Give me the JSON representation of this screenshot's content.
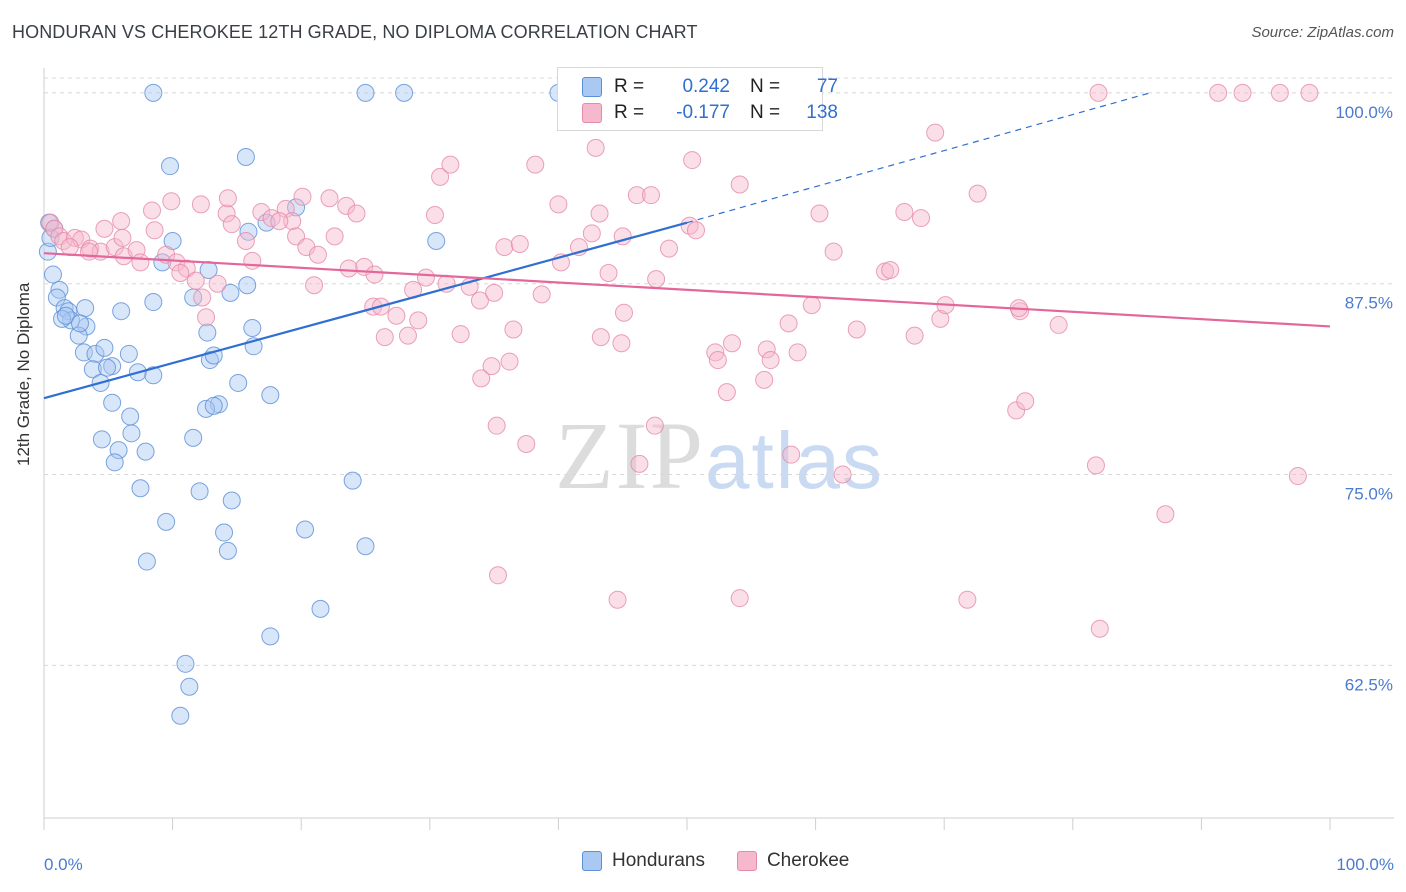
{
  "title": "HONDURAN VS CHEROKEE 12TH GRADE, NO DIPLOMA CORRELATION CHART",
  "source": "Source: ZipAtlas.com",
  "watermark": {
    "zip": "ZIP",
    "atlas": "atlas"
  },
  "legend_stats": {
    "r_label": "R =",
    "n_label": "N =",
    "rows": [
      {
        "r": "0.242",
        "n": "77"
      },
      {
        "r": "-0.177",
        "n": "138"
      }
    ]
  },
  "colors": {
    "hondurans_fill": "#a9c8f2",
    "hondurans_stroke": "#5b8fd6",
    "hondurans_line": "#2f6fd1",
    "cherokee_fill": "#f6b8cc",
    "cherokee_stroke": "#e58aa8",
    "cherokee_line": "#e3679a",
    "grid": "#d8d8d8",
    "tick_text": "#4a7bd0"
  },
  "chart_data": {
    "type": "scatter",
    "title": "HONDURAN VS CHEROKEE 12TH GRADE, NO DIPLOMA CORRELATION CHART",
    "xlabel": "",
    "ylabel": "12th Grade, No Diploma",
    "xlim": [
      0,
      100
    ],
    "ylim": [
      52.5,
      101.5
    ],
    "x_tick_labels": [
      "0.0%",
      "100.0%"
    ],
    "y_ticks": [
      62.5,
      75.0,
      87.5,
      100.0
    ],
    "y_tick_labels": [
      "62.5%",
      "75.0%",
      "87.5%",
      "100.0%"
    ],
    "grid": "horizontal dashed",
    "legend_placement": "top-center",
    "series": [
      {
        "name": "Hondurans",
        "r": 0.242,
        "n": 77,
        "trend": {
          "x": [
            0,
            50
          ],
          "y": [
            80.0,
            91.5
          ],
          "dashed_extension": {
            "x": [
              50,
              86
            ],
            "y": [
              91.5,
              100.0
            ]
          }
        },
        "points": [
          [
            8.5,
            100
          ],
          [
            25,
            100
          ],
          [
            28,
            100
          ],
          [
            40,
            100
          ],
          [
            9.8,
            95.2
          ],
          [
            15.7,
            95.8
          ],
          [
            0.4,
            91.5
          ],
          [
            0.3,
            89.6
          ],
          [
            0.7,
            88.1
          ],
          [
            1.2,
            87.1
          ],
          [
            1.0,
            86.6
          ],
          [
            1.6,
            85.9
          ],
          [
            1.9,
            85.7
          ],
          [
            2.1,
            85.1
          ],
          [
            3.2,
            85.9
          ],
          [
            3.3,
            84.7
          ],
          [
            1.4,
            85.2
          ],
          [
            2.7,
            84.1
          ],
          [
            6.0,
            85.7
          ],
          [
            3.1,
            83.0
          ],
          [
            4.0,
            82.9
          ],
          [
            4.7,
            83.3
          ],
          [
            5.3,
            82.1
          ],
          [
            6.6,
            82.9
          ],
          [
            7.3,
            81.7
          ],
          [
            3.8,
            81.9
          ],
          [
            4.4,
            81.0
          ],
          [
            8.5,
            81.5
          ],
          [
            12.7,
            84.3
          ],
          [
            12.9,
            82.5
          ],
          [
            13.2,
            82.8
          ],
          [
            14.5,
            86.9
          ],
          [
            16.2,
            84.6
          ],
          [
            16.3,
            83.4
          ],
          [
            11.6,
            86.6
          ],
          [
            8.5,
            86.3
          ],
          [
            9.2,
            88.9
          ],
          [
            10.0,
            90.3
          ],
          [
            12.8,
            88.4
          ],
          [
            15.8,
            87.4
          ],
          [
            17.3,
            91.5
          ],
          [
            15.9,
            90.9
          ],
          [
            19.6,
            92.5
          ],
          [
            30.5,
            90.3
          ],
          [
            17.6,
            80.2
          ],
          [
            15.1,
            81.0
          ],
          [
            13.6,
            79.6
          ],
          [
            12.6,
            79.3
          ],
          [
            13.2,
            79.5
          ],
          [
            5.3,
            79.7
          ],
          [
            6.7,
            78.8
          ],
          [
            6.8,
            77.7
          ],
          [
            4.5,
            77.3
          ],
          [
            5.8,
            76.6
          ],
          [
            7.9,
            76.5
          ],
          [
            11.6,
            77.4
          ],
          [
            5.5,
            75.8
          ],
          [
            7.5,
            74.1
          ],
          [
            12.1,
            73.9
          ],
          [
            14.6,
            73.3
          ],
          [
            24.0,
            74.6
          ],
          [
            9.5,
            71.9
          ],
          [
            14.0,
            71.2
          ],
          [
            20.3,
            71.4
          ],
          [
            25.0,
            70.3
          ],
          [
            14.3,
            70.0
          ],
          [
            8.0,
            69.3
          ],
          [
            21.5,
            66.2
          ],
          [
            17.6,
            64.4
          ],
          [
            11.0,
            62.6
          ],
          [
            11.3,
            61.1
          ],
          [
            10.6,
            59.2
          ],
          [
            0.8,
            91.1
          ],
          [
            0.5,
            90.5
          ],
          [
            1.7,
            85.4
          ],
          [
            2.8,
            84.9
          ],
          [
            4.9,
            82.0
          ]
        ]
      },
      {
        "name": "Cherokee",
        "r": -0.177,
        "n": 138,
        "trend": {
          "x": [
            0,
            100
          ],
          "y": [
            89.5,
            84.7
          ]
        },
        "points": [
          [
            0.5,
            91.5
          ],
          [
            0.8,
            91.1
          ],
          [
            1.2,
            90.6
          ],
          [
            1.5,
            90.3
          ],
          [
            2.4,
            90.5
          ],
          [
            2.9,
            90.4
          ],
          [
            3.6,
            89.8
          ],
          [
            4.4,
            89.6
          ],
          [
            5.5,
            89.9
          ],
          [
            6.2,
            89.3
          ],
          [
            7.2,
            89.7
          ],
          [
            8.6,
            91.0
          ],
          [
            9.5,
            89.4
          ],
          [
            10.3,
            88.9
          ],
          [
            11.1,
            88.5
          ],
          [
            11.8,
            87.7
          ],
          [
            12.3,
            86.6
          ],
          [
            13.5,
            87.5
          ],
          [
            12.6,
            85.3
          ],
          [
            8.4,
            92.3
          ],
          [
            6.0,
            91.6
          ],
          [
            6.1,
            90.5
          ],
          [
            9.9,
            92.9
          ],
          [
            12.2,
            92.7
          ],
          [
            14.2,
            92.1
          ],
          [
            14.6,
            91.4
          ],
          [
            15.7,
            90.3
          ],
          [
            16.9,
            92.2
          ],
          [
            17.7,
            91.8
          ],
          [
            18.8,
            92.4
          ],
          [
            19.3,
            91.6
          ],
          [
            19.6,
            90.6
          ],
          [
            20.4,
            89.9
          ],
          [
            21.3,
            89.4
          ],
          [
            22.2,
            93.1
          ],
          [
            23.5,
            92.6
          ],
          [
            24.3,
            92.1
          ],
          [
            21.0,
            87.4
          ],
          [
            23.7,
            88.5
          ],
          [
            24.9,
            88.6
          ],
          [
            25.6,
            86.0
          ],
          [
            26.2,
            86.0
          ],
          [
            27.4,
            85.4
          ],
          [
            26.5,
            84.0
          ],
          [
            28.3,
            84.1
          ],
          [
            28.7,
            87.1
          ],
          [
            29.7,
            87.9
          ],
          [
            31.3,
            87.5
          ],
          [
            30.4,
            92.0
          ],
          [
            30.8,
            94.5
          ],
          [
            31.6,
            95.3
          ],
          [
            33.1,
            87.3
          ],
          [
            33.9,
            86.4
          ],
          [
            35.0,
            86.9
          ],
          [
            32.4,
            84.2
          ],
          [
            34.0,
            81.3
          ],
          [
            35.2,
            78.2
          ],
          [
            34.8,
            82.1
          ],
          [
            35.8,
            89.9
          ],
          [
            36.5,
            84.5
          ],
          [
            37.0,
            90.1
          ],
          [
            38.7,
            86.8
          ],
          [
            36.2,
            82.4
          ],
          [
            37.5,
            77.0
          ],
          [
            38.2,
            95.3
          ],
          [
            40.0,
            92.7
          ],
          [
            40.2,
            88.9
          ],
          [
            41.6,
            89.9
          ],
          [
            42.6,
            90.8
          ],
          [
            43.2,
            92.1
          ],
          [
            42.9,
            96.4
          ],
          [
            43.3,
            84.0
          ],
          [
            45.0,
            90.6
          ],
          [
            45.1,
            85.6
          ],
          [
            43.9,
            88.2
          ],
          [
            46.1,
            93.3
          ],
          [
            47.6,
            87.8
          ],
          [
            47.2,
            93.3
          ],
          [
            44.9,
            83.6
          ],
          [
            46.3,
            75.7
          ],
          [
            47.5,
            78.2
          ],
          [
            48.6,
            89.8
          ],
          [
            50.2,
            91.3
          ],
          [
            50.7,
            91.0
          ],
          [
            47.6,
            100
          ],
          [
            50.4,
            95.6
          ],
          [
            52.2,
            83.0
          ],
          [
            52.4,
            82.5
          ],
          [
            53.1,
            80.4
          ],
          [
            53.5,
            83.6
          ],
          [
            54.1,
            94.0
          ],
          [
            55.4,
            100
          ],
          [
            56.0,
            81.2
          ],
          [
            56.2,
            83.2
          ],
          [
            56.5,
            82.5
          ],
          [
            57.9,
            84.9
          ],
          [
            58.6,
            83.0
          ],
          [
            58.1,
            76.3
          ],
          [
            59.7,
            86.1
          ],
          [
            60.3,
            92.1
          ],
          [
            61.4,
            89.6
          ],
          [
            62.1,
            75.0
          ],
          [
            63.2,
            84.5
          ],
          [
            65.4,
            88.3
          ],
          [
            65.8,
            88.4
          ],
          [
            66.9,
            92.2
          ],
          [
            67.7,
            84.1
          ],
          [
            68.2,
            91.8
          ],
          [
            69.7,
            85.2
          ],
          [
            69.3,
            97.4
          ],
          [
            70.1,
            86.1
          ],
          [
            72.6,
            93.4
          ],
          [
            75.6,
            79.2
          ],
          [
            75.9,
            85.7
          ],
          [
            76.3,
            79.8
          ],
          [
            78.9,
            84.8
          ],
          [
            81.8,
            75.6
          ],
          [
            82.1,
            64.9
          ],
          [
            82.0,
            100
          ],
          [
            87.2,
            72.4
          ],
          [
            91.3,
            100
          ],
          [
            93.2,
            100
          ],
          [
            96.1,
            100
          ],
          [
            98.4,
            100
          ],
          [
            97.5,
            74.9
          ],
          [
            35.3,
            68.4
          ],
          [
            44.6,
            66.8
          ],
          [
            54.1,
            66.9
          ],
          [
            71.8,
            66.8
          ],
          [
            75.8,
            85.9
          ],
          [
            2.0,
            89.9
          ],
          [
            3.5,
            89.6
          ],
          [
            4.7,
            91.1
          ],
          [
            7.5,
            88.9
          ],
          [
            10.6,
            88.2
          ],
          [
            14.3,
            93.1
          ],
          [
            16.2,
            89.0
          ],
          [
            18.3,
            91.6
          ],
          [
            20.1,
            93.2
          ],
          [
            22.6,
            90.6
          ],
          [
            25.7,
            88.1
          ],
          [
            29.1,
            85.1
          ]
        ]
      }
    ]
  },
  "bottom_legend": [
    {
      "label": "Hondurans"
    },
    {
      "label": "Cherokee"
    }
  ]
}
